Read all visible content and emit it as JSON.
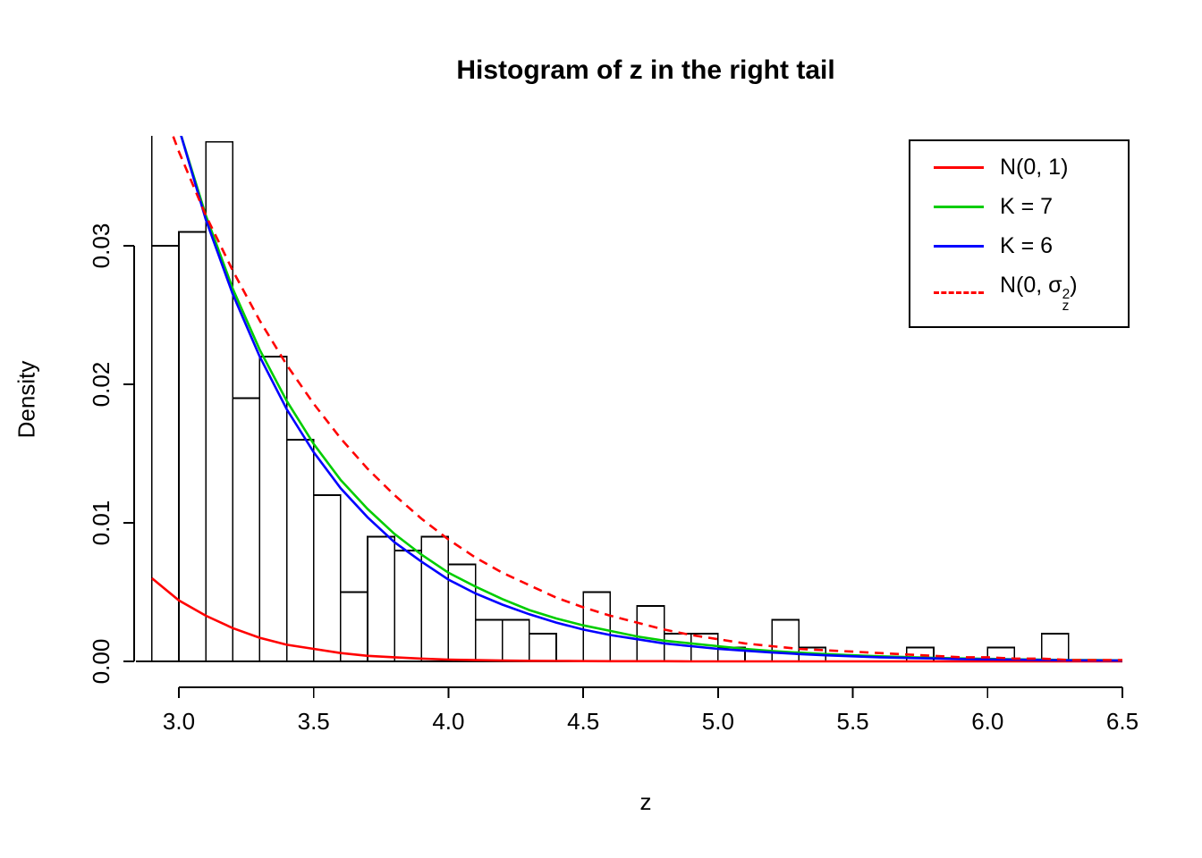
{
  "chart_data": {
    "type": "bar",
    "subtype": "histogram-with-density-curves",
    "title": "Histogram of z in the right tail",
    "xlabel": "z",
    "ylabel": "Density",
    "xlim": [
      2.83,
      6.62
    ],
    "ylim": [
      0,
      0.038
    ],
    "grid": false,
    "x_ticks": [
      3.0,
      3.5,
      4.0,
      4.5,
      5.0,
      5.5,
      6.0,
      6.5
    ],
    "x_tick_labels": [
      "3.0",
      "3.5",
      "4.0",
      "4.5",
      "5.0",
      "5.5",
      "6.0",
      "6.5"
    ],
    "y_ticks": [
      0.0,
      0.01,
      0.02,
      0.03
    ],
    "y_tick_labels": [
      "0.00",
      "0.01",
      "0.02",
      "0.03"
    ],
    "histogram": {
      "bin_start": 2.8,
      "bin_width": 0.1,
      "first_bin_clipped_above_plot": true,
      "densities": [
        0.045,
        0.03,
        0.031,
        0.0375,
        0.019,
        0.022,
        0.016,
        0.012,
        0.005,
        0.009,
        0.008,
        0.009,
        0.007,
        0.003,
        0.003,
        0.002,
        0,
        0.005,
        0,
        0.004,
        0.002,
        0.002,
        0.001,
        0,
        0.003,
        0.001,
        0,
        0,
        0,
        0.001,
        0,
        0,
        0.001,
        0,
        0.002
      ],
      "bar_fill": "#ffffff",
      "bar_stroke": "#000000"
    },
    "curve_x": [
      2.9,
      3.0,
      3.1,
      3.2,
      3.3,
      3.4,
      3.5,
      3.6,
      3.7,
      3.8,
      3.9,
      4.0,
      4.1,
      4.2,
      4.3,
      4.4,
      4.5,
      4.6,
      4.7,
      4.8,
      4.9,
      5.0,
      5.1,
      5.2,
      5.3,
      5.4,
      5.5,
      5.6,
      5.7,
      5.8,
      5.9,
      6.0,
      6.1,
      6.2,
      6.3,
      6.4,
      6.5
    ],
    "curves": [
      {
        "name": "N(0, 1)",
        "color": "#FF0000",
        "dash": false,
        "y": [
          0.006,
          0.0044,
          0.0033,
          0.0024,
          0.0017,
          0.0012,
          0.0009,
          0.0006,
          0.0004,
          0.0003,
          0.0002,
          0.00013,
          9e-05,
          6e-05,
          4e-05,
          3e-05,
          2e-05,
          1e-05,
          1e-05,
          1e-05,
          0,
          0,
          0,
          0,
          0,
          0,
          0,
          0,
          0,
          0,
          0,
          0,
          0,
          0,
          0,
          0,
          0
        ]
      },
      {
        "name": "K = 7",
        "color": "#00CD00",
        "dash": false,
        "y": [
          0.0461,
          0.0385,
          0.0322,
          0.0269,
          0.0225,
          0.0188,
          0.0157,
          0.0131,
          0.011,
          0.0092,
          0.0077,
          0.0064,
          0.0054,
          0.0045,
          0.0037,
          0.0031,
          0.0026,
          0.0022,
          0.0018,
          0.0015,
          0.0013,
          0.0011,
          0.0009,
          0.00075,
          0.00063,
          0.00053,
          0.00044,
          0.00037,
          0.00031,
          0.00026,
          0.00021,
          0.00018,
          0.00015,
          0.00012,
          0.0001,
          9e-05,
          7e-05
        ]
      },
      {
        "name": "K = 6",
        "color": "#0000FF",
        "dash": false,
        "y": [
          0.0464,
          0.0385,
          0.0319,
          0.0265,
          0.022,
          0.0182,
          0.0151,
          0.0125,
          0.0104,
          0.0086,
          0.0072,
          0.0059,
          0.0049,
          0.0041,
          0.0034,
          0.0028,
          0.0023,
          0.0019,
          0.0016,
          0.0013,
          0.0011,
          0.0009,
          0.00077,
          0.00064,
          0.00053,
          0.00044,
          0.00037,
          0.0003,
          0.00025,
          0.00021,
          0.00017,
          0.00014,
          0.00012,
          0.0001,
          8e-05,
          7e-05,
          6e-05
        ]
      },
      {
        "name": "N(0, sigma_z^2)",
        "color": "#FF0000",
        "dash": true,
        "y": [
          0.042,
          0.0368,
          0.0322,
          0.0282,
          0.0246,
          0.0214,
          0.0186,
          0.0161,
          0.0139,
          0.012,
          0.0103,
          0.0088,
          0.0075,
          0.0064,
          0.0055,
          0.0046,
          0.0039,
          0.0033,
          0.0028,
          0.0023,
          0.0019,
          0.0016,
          0.0013,
          0.0011,
          0.0009,
          0.0008,
          0.0007,
          0.0006,
          0.0005,
          0.0004,
          0.0003,
          0.0003,
          0.0002,
          0.0002,
          0.0001,
          0.0001,
          0.0001
        ]
      }
    ],
    "legend": {
      "position": "top-right",
      "entries": [
        {
          "label": "N(0, 1)",
          "color": "#FF0000",
          "dash": false
        },
        {
          "label": "K = 7",
          "color": "#00CD00",
          "dash": false
        },
        {
          "label": "K = 6",
          "color": "#0000FF",
          "dash": false
        },
        {
          "label": "N(0, σz²)",
          "color": "#FF0000",
          "dash": true,
          "parts": {
            "pre": "N(0, ",
            "sym": "σ",
            "sup": "2",
            "sub": "z",
            "post": ")"
          }
        }
      ]
    }
  }
}
